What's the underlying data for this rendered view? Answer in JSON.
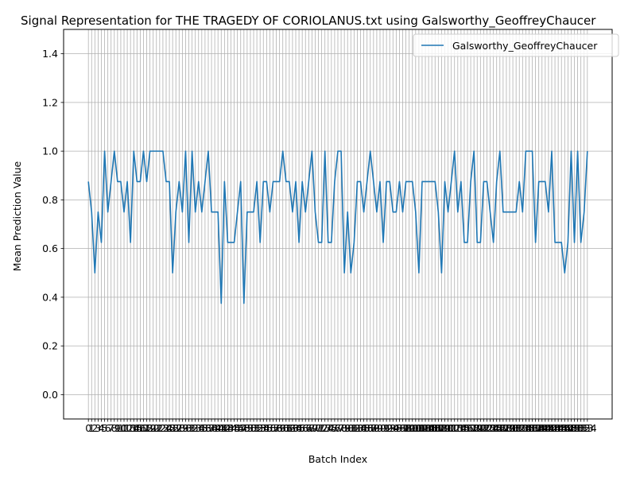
{
  "chart_data": {
    "type": "line",
    "title": "Signal Representation for THE TRAGEDY OF CORIOLANUS.txt using Galsworthy_GeoffreyChaucer",
    "xlabel": "Batch Index",
    "ylabel": "Mean Prediction Value",
    "ylim": [
      -0.1,
      1.5
    ],
    "yticks": [
      "0.0",
      "0.2",
      "0.4",
      "0.6",
      "0.8",
      "1.0",
      "1.2",
      "1.4"
    ],
    "grid": true,
    "legend_position": "top-right",
    "colors": {
      "series": "#1f77b4",
      "grid": "#b0b0b0",
      "axis": "#000000"
    },
    "series": [
      {
        "name": "Galsworthy_GeoffreyChaucer",
        "values": [
          0.875,
          0.75,
          0.5,
          0.75,
          0.625,
          1.0,
          0.75,
          0.875,
          1.0,
          0.875,
          0.875,
          0.75,
          0.875,
          0.625,
          1.0,
          0.875,
          0.875,
          1.0,
          0.875,
          1.0,
          1.0,
          1.0,
          1.0,
          1.0,
          0.875,
          0.875,
          0.5,
          0.75,
          0.875,
          0.75,
          1.0,
          0.625,
          1.0,
          0.75,
          0.875,
          0.75,
          0.875,
          1.0,
          0.75,
          0.75,
          0.75,
          0.375,
          0.875,
          0.625,
          0.625,
          0.625,
          0.75,
          0.875,
          0.375,
          0.75,
          0.75,
          0.75,
          0.875,
          0.625,
          0.875,
          0.875,
          0.75,
          0.875,
          0.875,
          0.875,
          1.0,
          0.875,
          0.875,
          0.75,
          0.875,
          0.625,
          0.875,
          0.75,
          0.875,
          1.0,
          0.75,
          0.625,
          0.625,
          1.0,
          0.625,
          0.625,
          0.875,
          1.0,
          1.0,
          0.5,
          0.75,
          0.5,
          0.625,
          0.875,
          0.875,
          0.75,
          0.875,
          1.0,
          0.875,
          0.75,
          0.875,
          0.625,
          0.875,
          0.875,
          0.75,
          0.75,
          0.875,
          0.75,
          0.875,
          0.875,
          0.875,
          0.75,
          0.5,
          0.875,
          0.875,
          0.875,
          0.875,
          0.875,
          0.75,
          0.5,
          0.875,
          0.75,
          0.875,
          1.0,
          0.75,
          0.875,
          0.625,
          0.625,
          0.875,
          1.0,
          0.625,
          0.625,
          0.875,
          0.875,
          0.75,
          0.625,
          0.875,
          1.0,
          0.75,
          0.75,
          0.75,
          0.75,
          0.75,
          0.875,
          0.75,
          1.0,
          1.0,
          1.0,
          0.625,
          0.875,
          0.875,
          0.875,
          0.75,
          1.0,
          0.625,
          0.625,
          0.625,
          0.5,
          0.625,
          1.0,
          0.625,
          1.0,
          0.625,
          0.75,
          1.0
        ]
      }
    ]
  }
}
